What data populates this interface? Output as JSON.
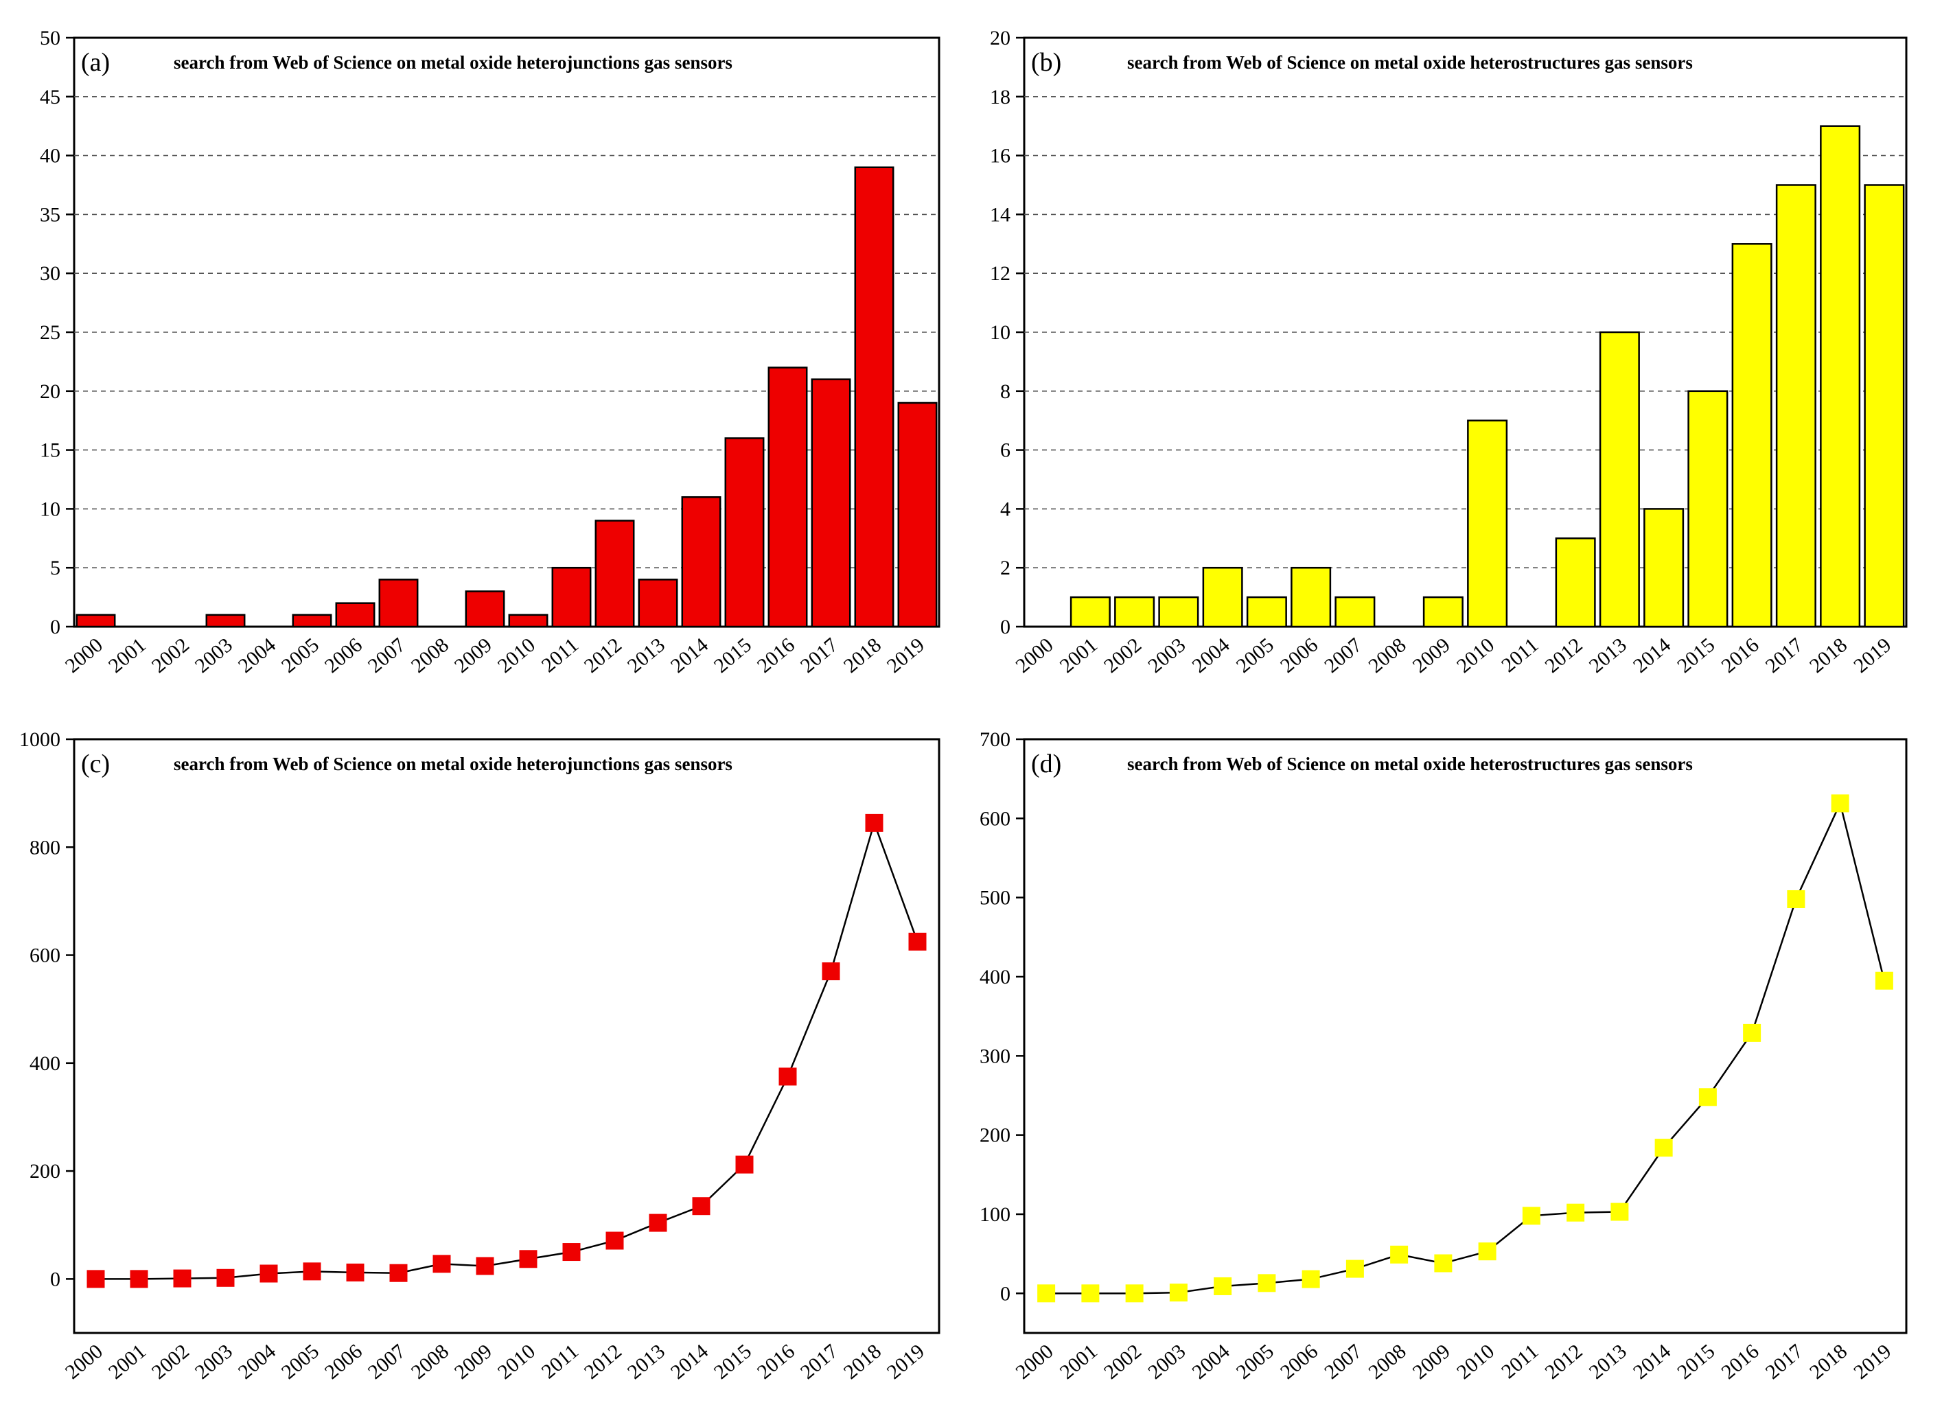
{
  "figure": {
    "background": "#ffffff",
    "axis_color": "#000000"
  },
  "chart_data": [
    {
      "id": "a",
      "type": "bar",
      "panel_label": "(a)",
      "title": "search from Web of Science on metal oxide heterojunctions gas sensors",
      "xlabel": "",
      "ylabel": "",
      "color": "#ee0000",
      "grid": true,
      "ylim": [
        0,
        50
      ],
      "yticks": [
        0,
        5,
        10,
        15,
        20,
        25,
        30,
        35,
        40,
        45,
        50
      ],
      "categories": [
        "2000",
        "2001",
        "2002",
        "2003",
        "2004",
        "2005",
        "2006",
        "2007",
        "2008",
        "2009",
        "2010",
        "2011",
        "2012",
        "2013",
        "2014",
        "2015",
        "2016",
        "2017",
        "2018",
        "2019"
      ],
      "values": [
        1,
        0,
        0,
        1,
        0,
        1,
        2,
        4,
        0,
        3,
        1,
        5,
        9,
        4,
        11,
        16,
        22,
        21,
        39,
        19
      ]
    },
    {
      "id": "b",
      "type": "bar",
      "panel_label": "(b)",
      "title": "search from Web of Science on metal oxide heterostructures gas sensors",
      "xlabel": "",
      "ylabel": "",
      "color": "#ffff00",
      "grid": true,
      "ylim": [
        0,
        20
      ],
      "yticks": [
        0,
        2,
        4,
        6,
        8,
        10,
        12,
        14,
        16,
        18,
        20
      ],
      "categories": [
        "2000",
        "2001",
        "2002",
        "2003",
        "2004",
        "2005",
        "2006",
        "2007",
        "2008",
        "2009",
        "2010",
        "2011",
        "2012",
        "2013",
        "2014",
        "2015",
        "2016",
        "2017",
        "2018",
        "2019"
      ],
      "values": [
        0,
        1,
        1,
        1,
        2,
        1,
        2,
        1,
        0,
        1,
        7,
        0,
        3,
        10,
        4,
        8,
        13,
        15,
        17,
        15
      ]
    },
    {
      "id": "c",
      "type": "line",
      "panel_label": "(c)",
      "title": "search from Web of Science on metal oxide heterojunctions gas sensors",
      "xlabel": "",
      "ylabel": "",
      "color": "#ee0000",
      "marker": "square",
      "grid": false,
      "ylim": [
        -100,
        1000
      ],
      "yticks": [
        0,
        200,
        400,
        600,
        800,
        1000
      ],
      "categories": [
        "2000",
        "2001",
        "2002",
        "2003",
        "2004",
        "2005",
        "2006",
        "2007",
        "2008",
        "2009",
        "2010",
        "2011",
        "2012",
        "2013",
        "2014",
        "2015",
        "2016",
        "2017",
        "2018",
        "2019"
      ],
      "values": [
        0,
        0,
        1,
        2,
        10,
        14,
        12,
        11,
        28,
        24,
        37,
        50,
        71,
        104,
        135,
        212,
        375,
        570,
        845,
        625
      ]
    },
    {
      "id": "d",
      "type": "line",
      "panel_label": "(d)",
      "title": "search from Web of Science on metal oxide heterostructures gas sensors",
      "xlabel": "",
      "ylabel": "",
      "color": "#ffff00",
      "marker": "square",
      "grid": false,
      "ylim": [
        -50,
        700
      ],
      "yticks": [
        0,
        100,
        200,
        300,
        400,
        500,
        600,
        700
      ],
      "categories": [
        "2000",
        "2001",
        "2002",
        "2003",
        "2004",
        "2005",
        "2006",
        "2007",
        "2008",
        "2009",
        "2010",
        "2011",
        "2012",
        "2013",
        "2014",
        "2015",
        "2016",
        "2017",
        "2018",
        "2019"
      ],
      "values": [
        0,
        0,
        0,
        1,
        9,
        13,
        18,
        31,
        49,
        38,
        53,
        98,
        102,
        103,
        184,
        248,
        329,
        498,
        619,
        395
      ]
    }
  ]
}
